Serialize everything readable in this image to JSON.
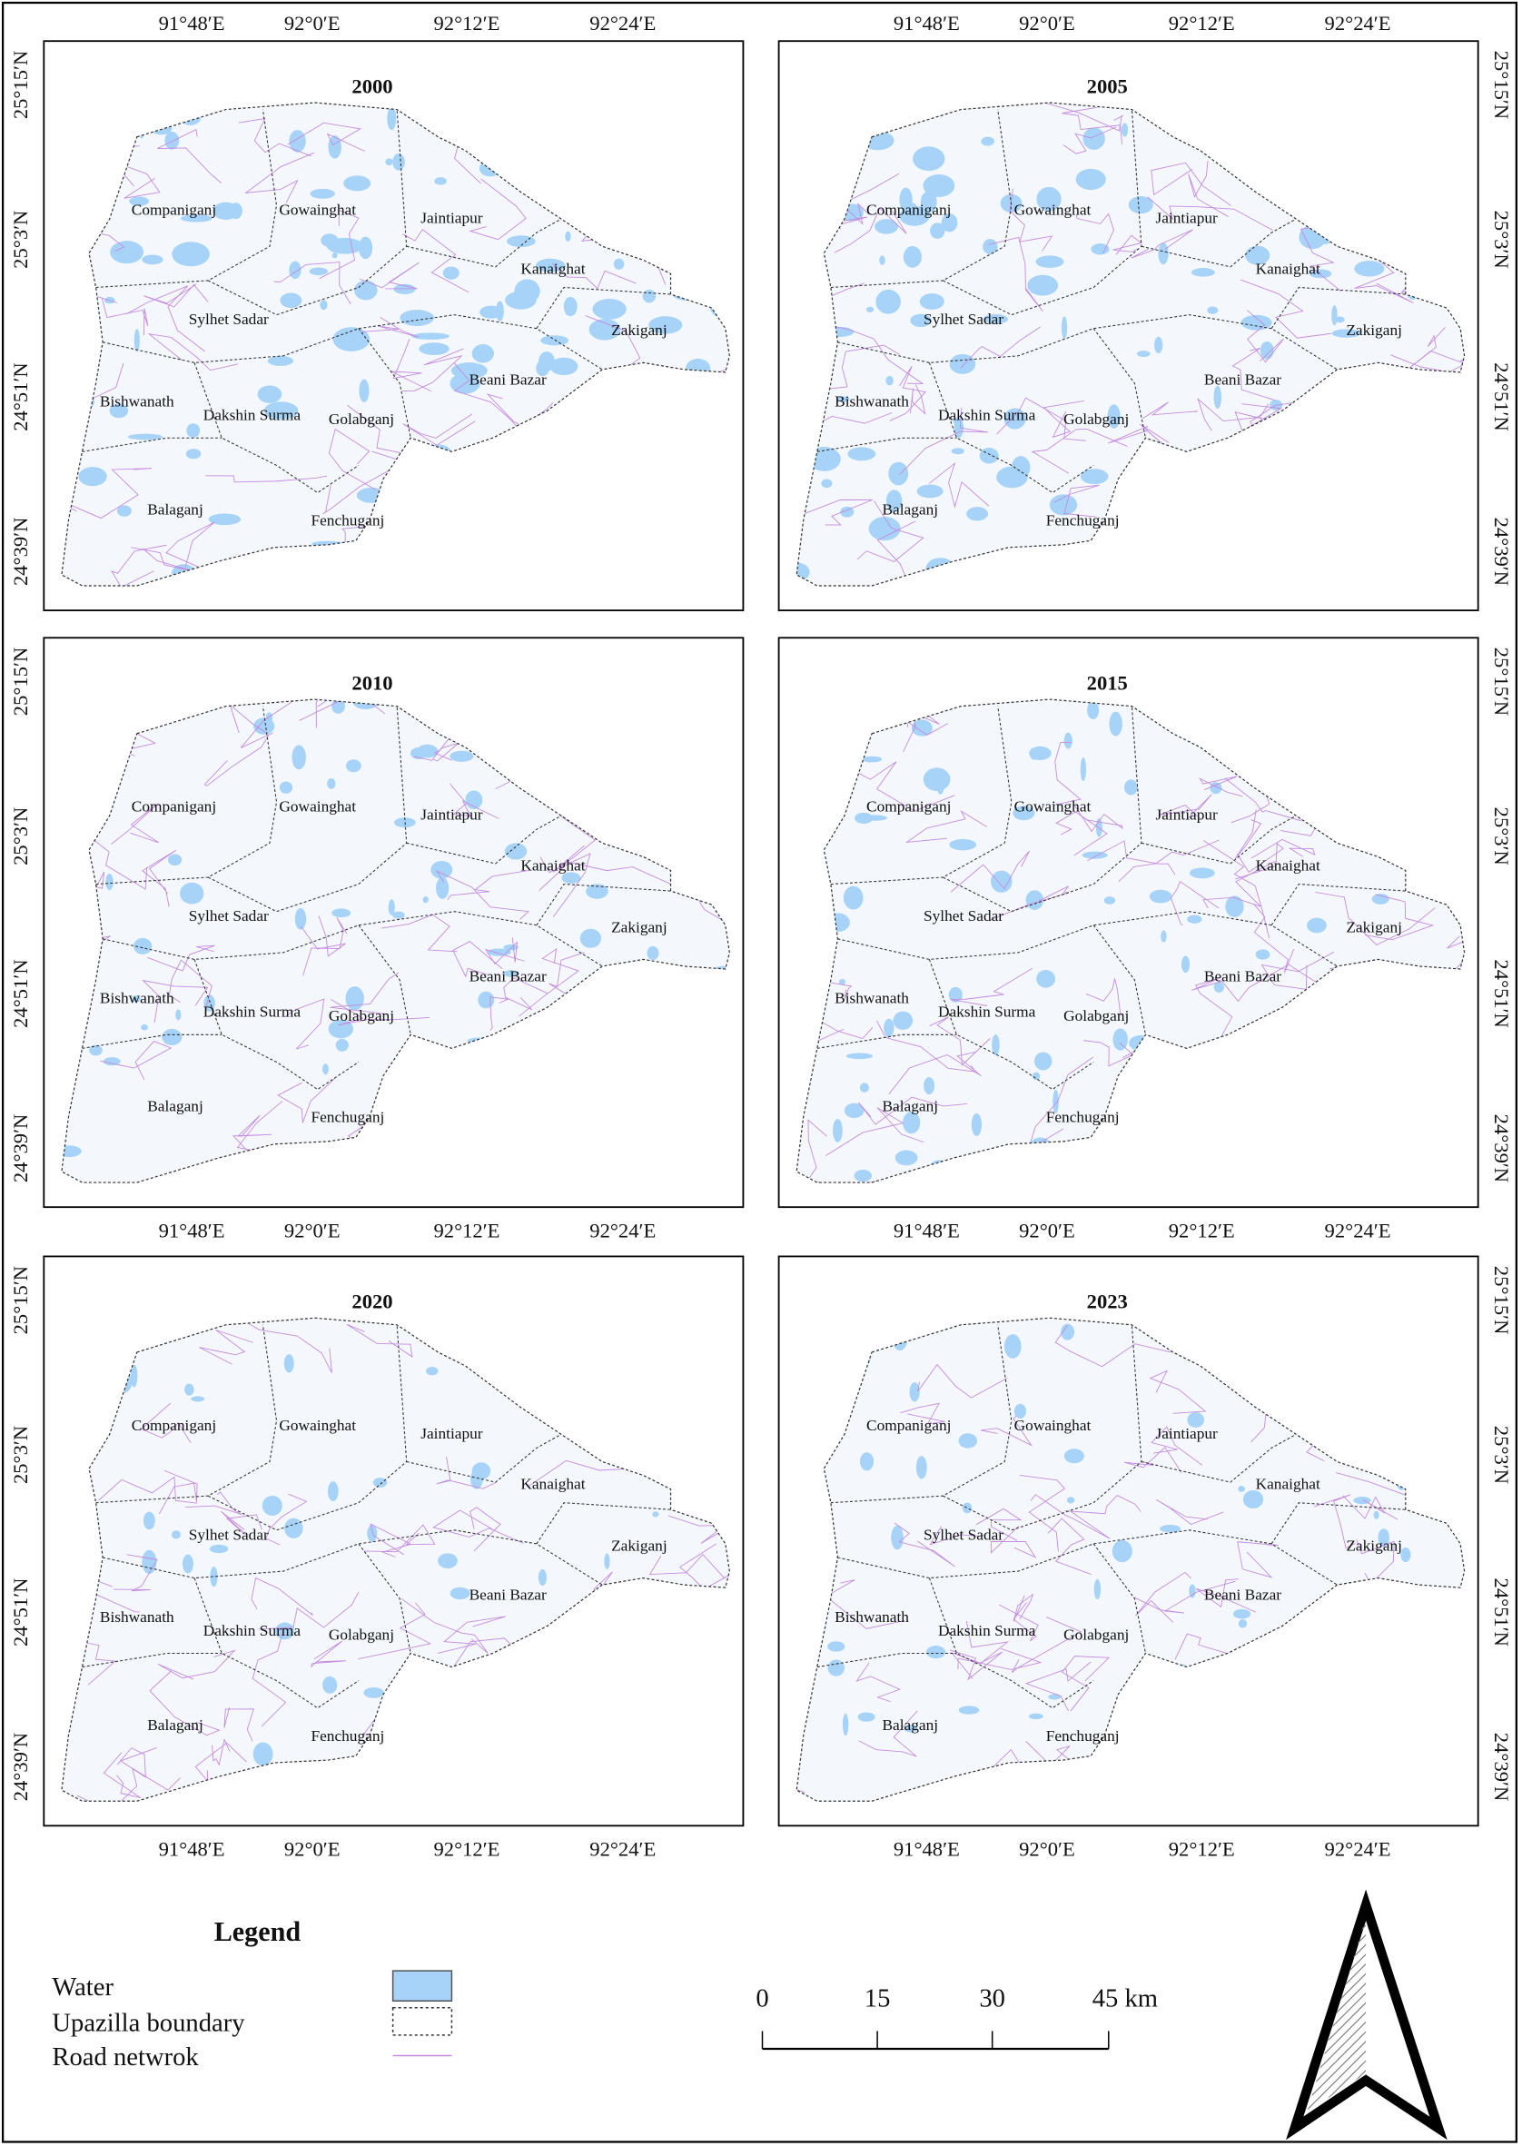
{
  "panels": [
    {
      "year": "2000"
    },
    {
      "year": "2005"
    },
    {
      "year": "2010"
    },
    {
      "year": "2015"
    },
    {
      "year": "2020"
    },
    {
      "year": "2023"
    }
  ],
  "lon_labels": [
    "91°48′E",
    "92°0′E",
    "92°12′E",
    "92°24′E"
  ],
  "lat_labels": [
    "25°15′N",
    "25°3′N",
    "24°51′N",
    "24°39′N"
  ],
  "upazilas": [
    "Companiganj",
    "Gowainghat",
    "Jaintiapur",
    "Kanaighat",
    "Sylhet Sadar",
    "Zakiganj",
    "Beani Bazar",
    "Bishwanath",
    "Dakshin Surma",
    "Golabganj",
    "Balaganj",
    "Fenchuganj"
  ],
  "legend": {
    "title": "Legend",
    "items": [
      "Water",
      "Upazilla boundary",
      "Road netwrok"
    ]
  },
  "scale_bar": {
    "labels": [
      "0",
      "15",
      "30",
      "45 km"
    ]
  }
}
